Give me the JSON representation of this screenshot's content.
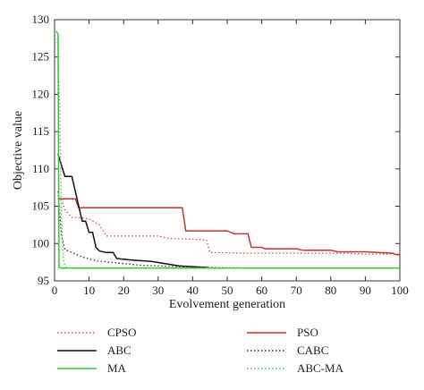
{
  "chart_data": {
    "type": "line",
    "xlabel": "Evolvement generation",
    "ylabel": "Objective value",
    "xlim": [
      0,
      100
    ],
    "ylim": [
      95,
      130
    ],
    "xticks": [
      "0",
      "10",
      "20",
      "30",
      "40",
      "50",
      "60",
      "70",
      "80",
      "90",
      "100"
    ],
    "yticks": [
      "95",
      "100",
      "105",
      "110",
      "115",
      "120",
      "125",
      "130"
    ],
    "grid": false,
    "legend_position": "below",
    "series": [
      {
        "name": "CPSO",
        "color": "#d24b4b",
        "dash": "dotted",
        "points": [
          [
            1,
            106
          ],
          [
            2,
            106
          ],
          [
            3,
            104.5
          ],
          [
            4,
            104
          ],
          [
            5,
            103.5
          ],
          [
            7,
            103.5
          ],
          [
            10,
            103.3
          ],
          [
            13,
            102.5
          ],
          [
            15,
            101
          ],
          [
            20,
            101
          ],
          [
            30,
            101
          ],
          [
            33,
            100.7
          ],
          [
            44,
            100.5
          ],
          [
            45,
            98.8
          ],
          [
            55,
            98.7
          ],
          [
            70,
            98.7
          ],
          [
            85,
            98.7
          ],
          [
            90,
            98.6
          ],
          [
            100,
            98.6
          ]
        ]
      },
      {
        "name": "PSO",
        "color": "#c83232",
        "dash": "solid",
        "points": [
          [
            1,
            106
          ],
          [
            6,
            106
          ],
          [
            7,
            104.8
          ],
          [
            15,
            104.8
          ],
          [
            30,
            104.8
          ],
          [
            37,
            104.8
          ],
          [
            38,
            101.7
          ],
          [
            50,
            101.7
          ],
          [
            52,
            101.3
          ],
          [
            56,
            101.3
          ],
          [
            57,
            99.5
          ],
          [
            60,
            99.5
          ],
          [
            61,
            99.3
          ],
          [
            70,
            99.3
          ],
          [
            72,
            99.1
          ],
          [
            80,
            99.1
          ],
          [
            82,
            98.9
          ],
          [
            90,
            98.9
          ],
          [
            98,
            98.7
          ],
          [
            99,
            98.5
          ],
          [
            100,
            98.5
          ]
        ]
      },
      {
        "name": "ABC",
        "color": "#111111",
        "dash": "solid",
        "points": [
          [
            1,
            112
          ],
          [
            2,
            110.5
          ],
          [
            3,
            109
          ],
          [
            5,
            109
          ],
          [
            6,
            107
          ],
          [
            7,
            105
          ],
          [
            8,
            103
          ],
          [
            9,
            103
          ],
          [
            10,
            101.5
          ],
          [
            11,
            101.5
          ],
          [
            12,
            99.5
          ],
          [
            13,
            99
          ],
          [
            15,
            98.8
          ],
          [
            17,
            98.8
          ],
          [
            18,
            98
          ],
          [
            22,
            97.8
          ],
          [
            28,
            97.6
          ],
          [
            32,
            97.3
          ],
          [
            36,
            97
          ],
          [
            40,
            96.9
          ],
          [
            44,
            96.8
          ],
          [
            45,
            96.7
          ]
        ]
      },
      {
        "name": "CABC",
        "color": "#333333",
        "dash": "dotted",
        "points": [
          [
            1,
            107
          ],
          [
            2,
            101
          ],
          [
            3,
            99.2
          ],
          [
            5,
            98.8
          ],
          [
            8,
            98.2
          ],
          [
            12,
            97.7
          ],
          [
            18,
            97.4
          ],
          [
            25,
            97.1
          ],
          [
            35,
            96.9
          ],
          [
            45,
            96.8
          ],
          [
            60,
            96.7
          ],
          [
            100,
            96.7
          ]
        ]
      },
      {
        "name": "MA",
        "color": "#33cc33",
        "dash": "solid",
        "points": [
          [
            0.5,
            128.5
          ],
          [
            1,
            128
          ],
          [
            1.3,
            96.8
          ],
          [
            2,
            96.7
          ],
          [
            100,
            96.7
          ]
        ]
      },
      {
        "name": "ABC-MA",
        "color": "#44cc44",
        "dash": "dotted",
        "points": [
          [
            0.8,
            127.5
          ],
          [
            1,
            125
          ],
          [
            1.5,
            118
          ],
          [
            2,
            104
          ],
          [
            2.5,
            98
          ],
          [
            3,
            96.9
          ],
          [
            4,
            96.7
          ],
          [
            100,
            96.7
          ]
        ]
      }
    ]
  }
}
